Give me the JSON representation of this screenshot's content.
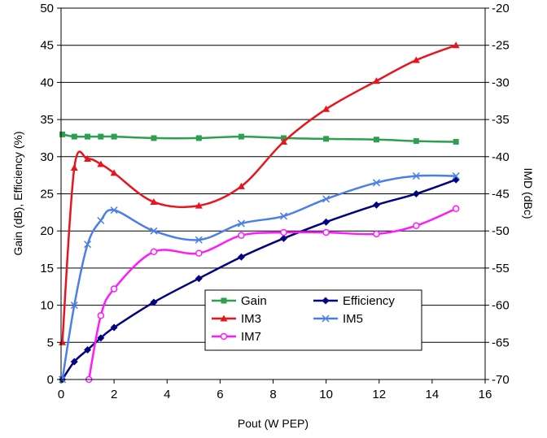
{
  "chart_data": {
    "type": "line",
    "title": "",
    "xlabel": "Pout (W PEP)",
    "ylabel": "Gain (dB), Efficiency (%)",
    "y2label": "IMD (dBc)",
    "xlim": [
      0,
      16
    ],
    "ylim": [
      0,
      50
    ],
    "y2lim": [
      -70,
      -20
    ],
    "x_ticks": [
      "0",
      "2",
      "4",
      "6",
      "8",
      "10",
      "12",
      "14",
      "16"
    ],
    "y_ticks": [
      "0",
      "5",
      "10",
      "15",
      "20",
      "25",
      "30",
      "35",
      "40",
      "45",
      "50"
    ],
    "y2_ticks": [
      "-70",
      "-65",
      "-60",
      "-55",
      "-50",
      "-45",
      "-40",
      "-35",
      "-30",
      "-25",
      "-20"
    ],
    "grid": "horizontal",
    "legend_position": "bottom-center",
    "series": [
      {
        "name": "Gain",
        "axis": "left",
        "color": "#2e9e4f",
        "marker": "square",
        "x": [
          0.05,
          0.5,
          1.0,
          1.5,
          2.0,
          3.5,
          5.2,
          6.8,
          8.4,
          10.0,
          11.9,
          13.4,
          14.9
        ],
        "y": [
          33.0,
          32.7,
          32.7,
          32.7,
          32.7,
          32.5,
          32.5,
          32.7,
          32.5,
          32.4,
          32.3,
          32.1,
          32.0
        ]
      },
      {
        "name": "Efficiency",
        "axis": "left",
        "color": "#000080",
        "marker": "diamond",
        "x": [
          0.05,
          0.5,
          1.0,
          1.5,
          2.0,
          3.5,
          5.2,
          6.8,
          8.4,
          10.0,
          11.9,
          13.4,
          14.9
        ],
        "y": [
          0.0,
          2.4,
          4.0,
          5.6,
          7.0,
          10.4,
          13.6,
          16.5,
          19.0,
          21.2,
          23.5,
          25.0,
          26.9
        ]
      },
      {
        "name": "IM3",
        "axis": "right",
        "color": "#e8141e",
        "marker": "triangle",
        "x": [
          0.05,
          0.5,
          1.0,
          1.5,
          2.0,
          3.5,
          5.2,
          6.8,
          8.4,
          10.0,
          11.9,
          13.4,
          14.9
        ],
        "y": [
          -65.0,
          -41.5,
          -40.3,
          -41.0,
          -42.2,
          -46.1,
          -46.6,
          -44.0,
          -38.0,
          -33.6,
          -29.8,
          -27.0,
          -25.0
        ]
      },
      {
        "name": "IM5",
        "axis": "right",
        "color": "#4a7ee8",
        "marker": "x",
        "x": [
          0.05,
          0.5,
          1.0,
          1.5,
          2.0,
          3.5,
          5.2,
          6.8,
          8.4,
          10.0,
          11.9,
          13.4,
          14.9
        ],
        "y": [
          -70.0,
          -60.0,
          -51.8,
          -48.6,
          -47.2,
          -50.0,
          -51.2,
          -49.0,
          -48.0,
          -45.7,
          -43.5,
          -42.6,
          -42.6
        ]
      },
      {
        "name": "IM7",
        "axis": "right",
        "color": "#ff19ff",
        "marker": "circle",
        "x": [
          1.05,
          1.5,
          2.0,
          3.5,
          5.2,
          6.8,
          8.4,
          10.0,
          11.9,
          13.4,
          14.9
        ],
        "y": [
          -70.0,
          -61.4,
          -57.8,
          -52.8,
          -53.0,
          -50.6,
          -50.2,
          -50.2,
          -50.4,
          -49.3,
          -47.0
        ]
      }
    ]
  }
}
